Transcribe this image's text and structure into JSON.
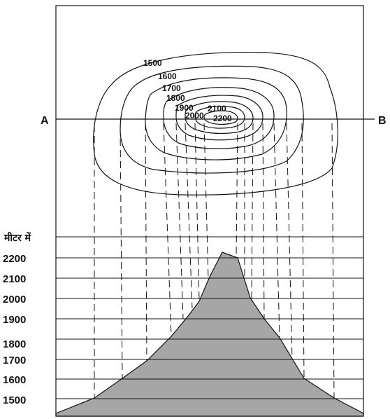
{
  "profile_line": {
    "start_label": "A",
    "end_label": "B"
  },
  "contour_labels": [
    "1500",
    "1600",
    "1700",
    "1800",
    "1900",
    "2000",
    "2100",
    "2200"
  ],
  "axis": {
    "unit_label": "मीटर में",
    "ticks": [
      "2200",
      "2100",
      "2000",
      "1900",
      "1800",
      "1700",
      "1600",
      "1500"
    ]
  },
  "colors": {
    "profile_fill": "#a6a6a6",
    "line": "#111111"
  }
}
